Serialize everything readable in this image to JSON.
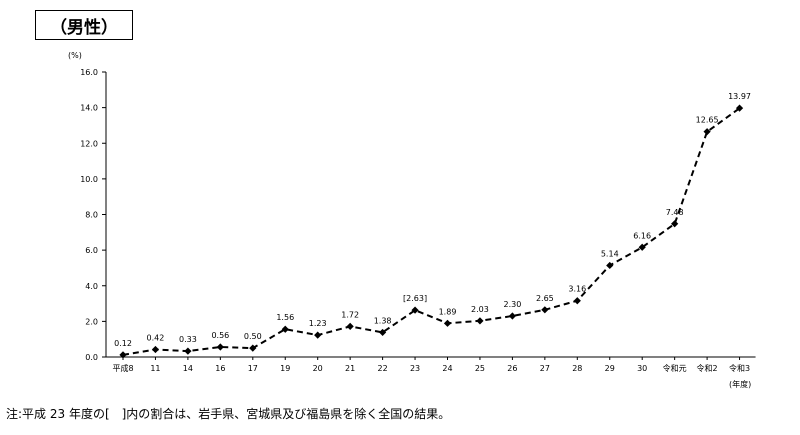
{
  "title": "（男性）",
  "note": "注:平成 23 年度の[　]内の割合は、岩手県、宮城県及び福島県を除く全国の結果。",
  "chart_data": {
    "type": "line",
    "title": "（男性）",
    "y_unit": "(%)",
    "x_unit": "(年度)",
    "ylim": [
      0,
      16
    ],
    "y_ticks": [
      "0.0",
      "2.0",
      "4.0",
      "6.0",
      "8.0",
      "10.0",
      "12.0",
      "14.0",
      "16.0"
    ],
    "categories": [
      "平成8",
      "11",
      "14",
      "16",
      "17",
      "19",
      "20",
      "21",
      "22",
      "23",
      "24",
      "25",
      "26",
      "27",
      "28",
      "29",
      "30",
      "令和元",
      "令和2",
      "令和3"
    ],
    "values": [
      0.12,
      0.42,
      0.33,
      0.56,
      0.5,
      1.56,
      1.23,
      1.72,
      1.38,
      2.63,
      1.89,
      2.03,
      2.3,
      2.65,
      3.16,
      5.14,
      6.16,
      7.48,
      12.65,
      13.97
    ],
    "labels": [
      "0.12",
      "0.42",
      "0.33",
      "0.56",
      "0.50",
      "1.56",
      "1.23",
      "1.72",
      "1.38",
      "[2.63]",
      "1.89",
      "2.03",
      "2.30",
      "2.65",
      "3.16",
      "5.14",
      "6.16",
      "7.48",
      "12.65",
      "13.97"
    ],
    "line_style": "dashed",
    "marker": "diamond",
    "grid": false,
    "color": "#000000"
  }
}
